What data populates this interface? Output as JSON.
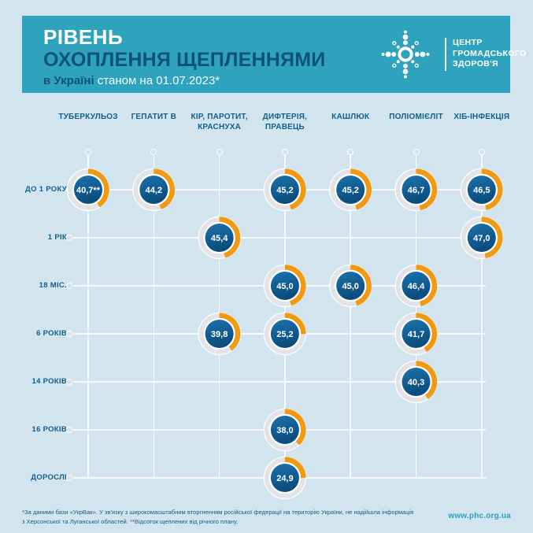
{
  "header": {
    "title_line1": "РІВЕНЬ",
    "title_line2": "ОХОПЛЕННЯ ЩЕПЛЕННЯМИ",
    "subtitle_bold": "в Україні",
    "subtitle_rest": " станом на 01.07.2023*",
    "logo_text": [
      "ЦЕНТР",
      "ГРОМАДСЬКОГО",
      "ЗДОРОВ'Я"
    ]
  },
  "colors": {
    "background": "#d2e5ee",
    "banner": "#2fa3bd",
    "dark_blue_text": "#11608c",
    "donut_ring": "#e3e3e7",
    "donut_arc_orange": "#ef9a10",
    "donut_fill_top": "#1c72ad",
    "donut_fill_bottom": "#0a4c7c",
    "donut_value_text": "#ffffff",
    "grid_line": "rgba(255,255,255,0.8)",
    "website_teal": "#2da0bc"
  },
  "chart_data": {
    "type": "donut-matrix",
    "title": "РІВЕНЬ ОХОПЛЕННЯ ЩЕПЛЕННЯМИ в Україні станом на 01.07.2023*",
    "unit": "%",
    "value_range": [
      0,
      100
    ],
    "columns": [
      [
        "ТУБЕРКУЛЬОЗ"
      ],
      [
        "ГЕПАТИТ В"
      ],
      [
        "КІР, ПАРОТИТ,",
        "КРАСНУХА"
      ],
      [
        "ДИФТЕРІЯ,",
        "ПРАВЕЦЬ"
      ],
      [
        "КАШЛЮК"
      ],
      [
        "ПОЛІОМІЄЛІТ"
      ],
      [
        "ХІБ-ІНФЕКЦІЯ"
      ]
    ],
    "rows": [
      "ДО 1 РОКУ",
      "1 РІК",
      "18 МІС.",
      "6 РОКІВ",
      "14 РОКІВ",
      "16 РОКІВ",
      "ДОРОСЛІ"
    ],
    "cells": [
      {
        "row": 0,
        "col": 0,
        "value": 40.7,
        "label": "40,7**"
      },
      {
        "row": 0,
        "col": 1,
        "value": 44.2,
        "label": "44,2"
      },
      {
        "row": 0,
        "col": 3,
        "value": 45.2,
        "label": "45,2"
      },
      {
        "row": 0,
        "col": 4,
        "value": 45.2,
        "label": "45,2"
      },
      {
        "row": 0,
        "col": 5,
        "value": 46.7,
        "label": "46,7"
      },
      {
        "row": 0,
        "col": 6,
        "value": 46.5,
        "label": "46,5"
      },
      {
        "row": 1,
        "col": 2,
        "value": 45.4,
        "label": "45,4"
      },
      {
        "row": 1,
        "col": 6,
        "value": 47.0,
        "label": "47,0"
      },
      {
        "row": 2,
        "col": 3,
        "value": 45.0,
        "label": "45,0"
      },
      {
        "row": 2,
        "col": 4,
        "value": 45.0,
        "label": "45,0"
      },
      {
        "row": 2,
        "col": 5,
        "value": 46.4,
        "label": "46,4"
      },
      {
        "row": 3,
        "col": 2,
        "value": 39.8,
        "label": "39,8"
      },
      {
        "row": 3,
        "col": 3,
        "value": 25.2,
        "label": "25,2"
      },
      {
        "row": 3,
        "col": 5,
        "value": 41.7,
        "label": "41,7"
      },
      {
        "row": 4,
        "col": 5,
        "value": 40.3,
        "label": "40,3"
      },
      {
        "row": 5,
        "col": 3,
        "value": 38.0,
        "label": "38,0"
      },
      {
        "row": 6,
        "col": 3,
        "value": 24.9,
        "label": "24,9"
      }
    ]
  },
  "footer": {
    "note_line1": "*За даними бази «УкрВак».  У зв'язку з широкомасштабним вторгненням російської федерації  на територію України, не надійшла інформація",
    "note_line2": "з Херсонської та Луганської областей.   **Відсоток щеплених від річного плану.",
    "website": "www.phc.org.ua"
  }
}
